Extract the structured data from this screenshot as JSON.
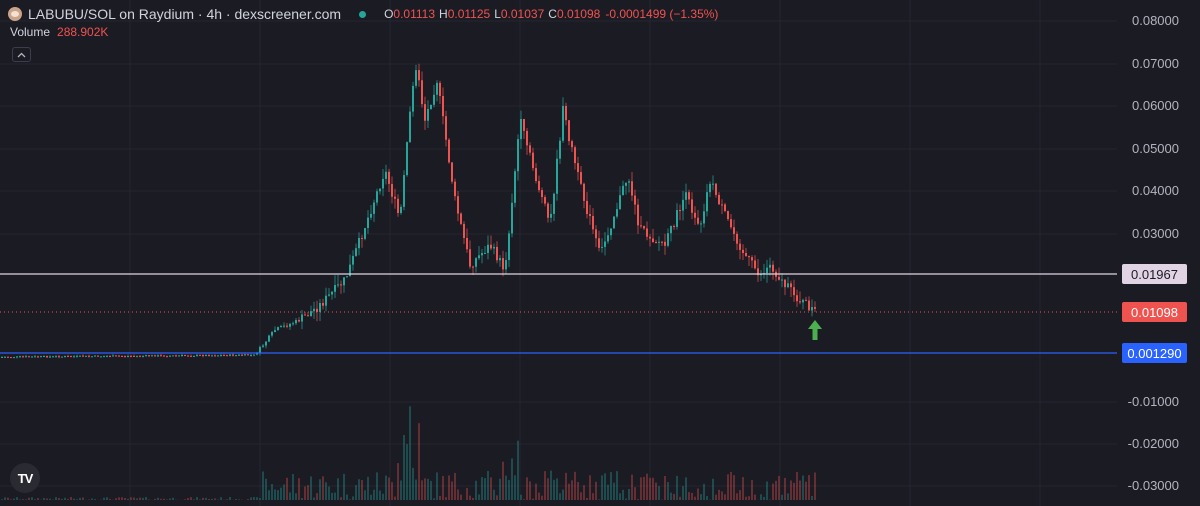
{
  "legend": {
    "symbol": "LABUBU/SOL on Raydium · 4h · dexscreener.com",
    "status_color": "#26a69a",
    "ohlc": [
      {
        "label": "O",
        "value": "0.01113"
      },
      {
        "label": "H",
        "value": "0.01125"
      },
      {
        "label": "L",
        "value": "0.01037"
      },
      {
        "label": "C",
        "value": "0.01098"
      }
    ],
    "change": "-0.0001499 (−1.35%)",
    "value_color": "#ef5350"
  },
  "volume": {
    "label": "Volume",
    "value": "288.902K"
  },
  "axis": {
    "labels": [
      "0.08000",
      "0.07000",
      "0.06000",
      "0.05000",
      "0.04000",
      "0.03000",
      "-0.01000",
      "-0.02000",
      "-0.03000"
    ]
  },
  "price_tags": {
    "resistance": {
      "value": "0.01967",
      "color": "#e1d3e3"
    },
    "current": {
      "value": "0.01098",
      "color": "#ef5350"
    },
    "support": {
      "value": "0.001290",
      "color": "#2962ff"
    }
  },
  "icons": {
    "avatar": "labubu-avatar-icon",
    "collapse": "chevron-up-icon",
    "logo": "tradingview-logo-icon",
    "arrow": "green-up-arrow-icon"
  },
  "logo_text": "TV",
  "colors": {
    "up": "#26a69a",
    "down": "#ef5350",
    "background": "#1b1b24",
    "grid": "#262632"
  }
}
